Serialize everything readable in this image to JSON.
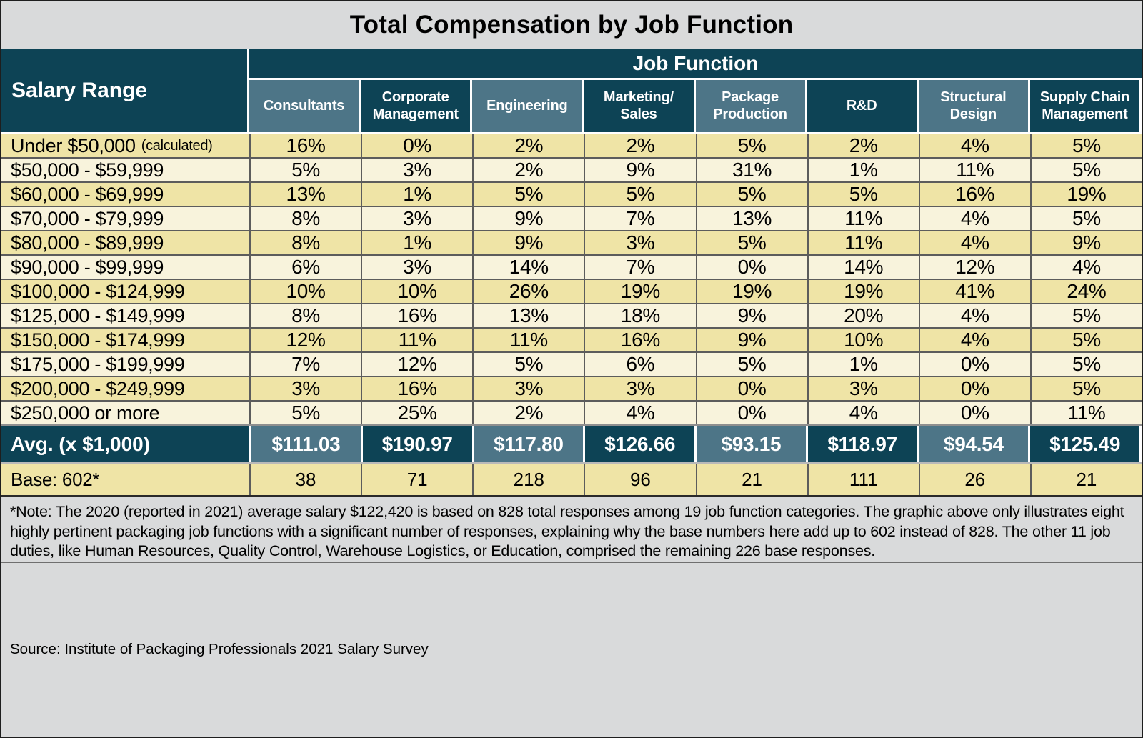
{
  "title": "Total Compensation by Job Function",
  "header": {
    "group_label": "Job Function",
    "row_label": "Salary Range",
    "columns": [
      "Consultants",
      "Corporate\nManagement",
      "Engineering",
      "Marketing/\nSales",
      "Package\nProduction",
      "R&D",
      "Structural\nDesign",
      "Supply Chain\nManagement"
    ]
  },
  "note": "*Note: The 2020 (reported in 2021) average salary $122,420 is based on 828 total responses among 19 job function categories. The graphic above only illustrates eight highly pertinent packaging job functions with a significant number of responses, explaining why the base numbers here add up to 602 instead of 828. The other 11 job duties, like Human Resources, Quality Control, Warehouse Logistics, or Education, comprised the remaining 226 base responses.",
  "source": "Source: Institute of Packaging Professionals 2021 Salary Survey",
  "colors": {
    "teal_dark": "#0d4355",
    "teal_light": "#4d7587",
    "row_yellow_dark": "#efe4a6",
    "row_yellow_light": "#f8f3dc",
    "panel_gray": "#d9dadb"
  },
  "chart_data": {
    "type": "table",
    "title": "Total Compensation by Job Function",
    "column_group_label": "Job Function",
    "row_header": "Salary Range",
    "columns": [
      "Consultants",
      "Corporate Management",
      "Engineering",
      "Marketing/Sales",
      "Package Production",
      "R&D",
      "Structural Design",
      "Supply Chain Management"
    ],
    "rows": [
      {
        "label": "Under $50,000",
        "label_suffix": "(calculated)",
        "values": [
          "16%",
          "0%",
          "2%",
          "2%",
          "5%",
          "2%",
          "4%",
          "5%"
        ]
      },
      {
        "label": "$50,000 - $59,999",
        "values": [
          "5%",
          "3%",
          "2%",
          "9%",
          "31%",
          "1%",
          "11%",
          "5%"
        ]
      },
      {
        "label": "$60,000 - $69,999",
        "values": [
          "13%",
          "1%",
          "5%",
          "5%",
          "5%",
          "5%",
          "16%",
          "19%"
        ]
      },
      {
        "label": "$70,000 - $79,999",
        "values": [
          "8%",
          "3%",
          "9%",
          "7%",
          "13%",
          "11%",
          "4%",
          "5%"
        ]
      },
      {
        "label": "$80,000 - $89,999",
        "values": [
          "8%",
          "1%",
          "9%",
          "3%",
          "5%",
          "11%",
          "4%",
          "9%"
        ]
      },
      {
        "label": "$90,000 - $99,999",
        "values": [
          "6%",
          "3%",
          "14%",
          "7%",
          "0%",
          "14%",
          "12%",
          "4%"
        ]
      },
      {
        "label": "$100,000 - $124,999",
        "values": [
          "10%",
          "10%",
          "26%",
          "19%",
          "19%",
          "19%",
          "41%",
          "24%"
        ]
      },
      {
        "label": "$125,000 - $149,999",
        "values": [
          "8%",
          "16%",
          "13%",
          "18%",
          "9%",
          "20%",
          "4%",
          "5%"
        ]
      },
      {
        "label": "$150,000 - $174,999",
        "values": [
          "12%",
          "11%",
          "11%",
          "16%",
          "9%",
          "10%",
          "4%",
          "5%"
        ]
      },
      {
        "label": "$175,000 - $199,999",
        "values": [
          "7%",
          "12%",
          "5%",
          "6%",
          "5%",
          "1%",
          "0%",
          "5%"
        ]
      },
      {
        "label": "$200,000 - $249,999",
        "values": [
          "3%",
          "16%",
          "3%",
          "3%",
          "0%",
          "3%",
          "0%",
          "5%"
        ]
      },
      {
        "label": "$250,000 or more",
        "values": [
          "5%",
          "25%",
          "2%",
          "4%",
          "0%",
          "4%",
          "0%",
          "11%"
        ]
      }
    ],
    "average_row": {
      "label": "Avg. (x $1,000)",
      "values": [
        "$111.03",
        "$190.97",
        "$117.80",
        "$126.66",
        "$93.15",
        "$118.97",
        "$94.54",
        "$125.49"
      ]
    },
    "base_row": {
      "label": "Base: 602*",
      "values": [
        "38",
        "71",
        "218",
        "96",
        "21",
        "111",
        "26",
        "21"
      ]
    }
  }
}
